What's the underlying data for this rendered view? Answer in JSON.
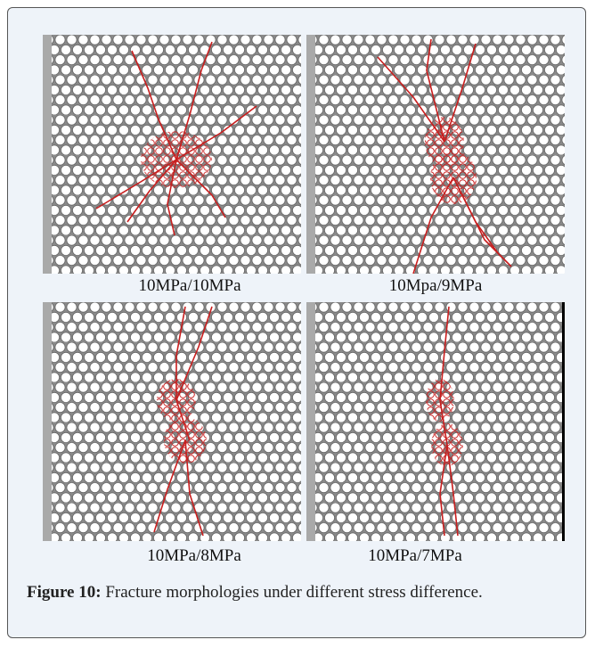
{
  "panels": [
    {
      "label": "10MPa/10MPa"
    },
    {
      "label": "10Mpa/9MPa"
    },
    {
      "label": "10MPa/8MPa"
    },
    {
      "label": "10MPa/7MPa"
    }
  ],
  "caption": {
    "label": "Figure 10:",
    "text": "Fracture morphologies under different stress difference."
  }
}
